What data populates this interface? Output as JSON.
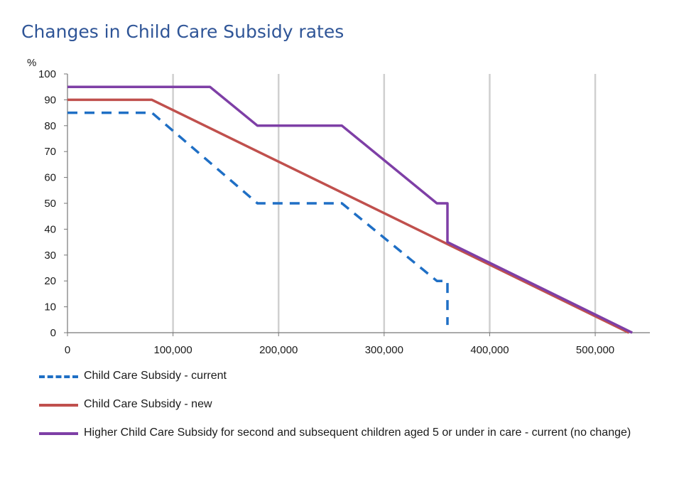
{
  "chart_data": {
    "type": "line",
    "title": "Changes in Child Care Subsidy rates",
    "ylabel": "%",
    "xlabel": "",
    "xlim": [
      0,
      550000
    ],
    "ylim": [
      0,
      100
    ],
    "x_ticks": [
      {
        "value": 0,
        "label": "0"
      },
      {
        "value": 100000,
        "label": "100,000"
      },
      {
        "value": 200000,
        "label": "200,000"
      },
      {
        "value": 300000,
        "label": "300,000"
      },
      {
        "value": 400000,
        "label": "400,000"
      },
      {
        "value": 500000,
        "label": "500,000"
      }
    ],
    "y_ticks": [
      {
        "value": 0,
        "label": "0"
      },
      {
        "value": 10,
        "label": "10"
      },
      {
        "value": 20,
        "label": "20"
      },
      {
        "value": 30,
        "label": "30"
      },
      {
        "value": 40,
        "label": "40"
      },
      {
        "value": 50,
        "label": "50"
      },
      {
        "value": 60,
        "label": "60"
      },
      {
        "value": 70,
        "label": "70"
      },
      {
        "value": 80,
        "label": "80"
      },
      {
        "value": 90,
        "label": "90"
      },
      {
        "value": 100,
        "label": "100"
      }
    ],
    "grid": {
      "vertical": true,
      "horizontal": false
    },
    "legend_position": "bottom",
    "series": [
      {
        "name": "Child Care Subsidy - current",
        "color": "#1f6fc5",
        "style": "dashed",
        "points": [
          [
            0,
            85
          ],
          [
            80000,
            85
          ],
          [
            180000,
            50
          ],
          [
            260000,
            50
          ],
          [
            350000,
            20
          ],
          [
            360000,
            20
          ],
          [
            360000,
            3
          ]
        ]
      },
      {
        "name": "Child Care Subsidy - new",
        "color": "#c0504d",
        "style": "solid",
        "points": [
          [
            0,
            90
          ],
          [
            80000,
            90
          ],
          [
            532000,
            0
          ]
        ]
      },
      {
        "name": "Higher Child Care Subsidy for second and subsequent children aged 5 or under in care - current (no change)",
        "color": "#7e3fa6",
        "style": "solid",
        "points": [
          [
            0,
            95
          ],
          [
            135000,
            95
          ],
          [
            180000,
            80
          ],
          [
            260000,
            80
          ],
          [
            350000,
            50
          ],
          [
            360000,
            50
          ],
          [
            360000,
            35
          ],
          [
            535000,
            0
          ]
        ]
      }
    ]
  }
}
